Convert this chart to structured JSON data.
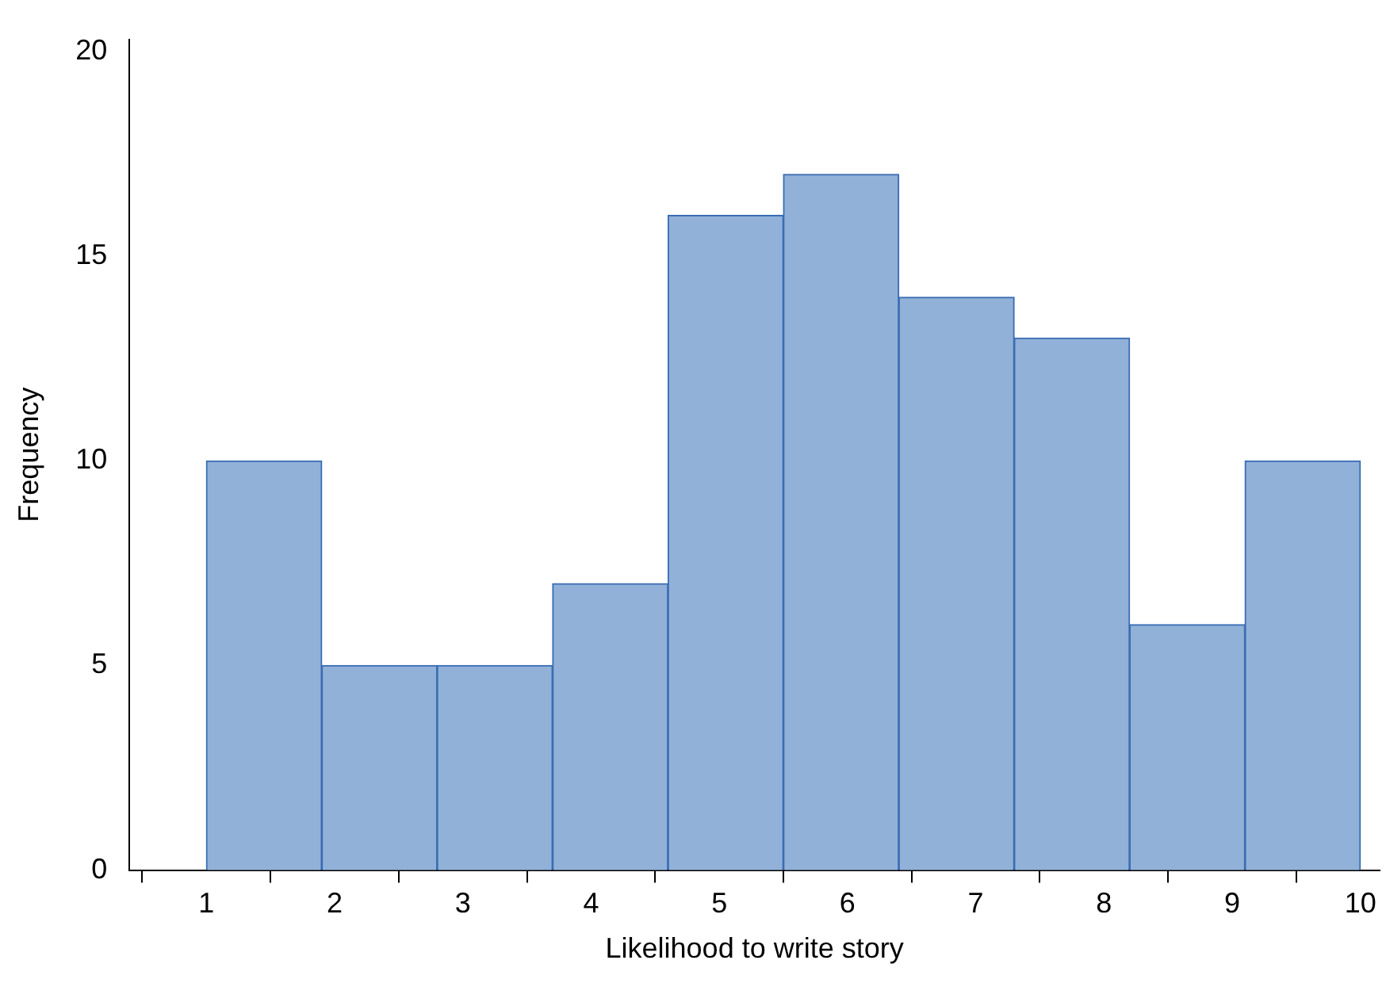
{
  "chart_data": {
    "type": "histogram",
    "xlabel": "Likelihood to write story",
    "ylabel": "Frequency",
    "bins": [
      1,
      1.9,
      2.8,
      3.7,
      4.6,
      5.5,
      6.4,
      7.3,
      8.2,
      9.1,
      10
    ],
    "values": [
      10,
      5,
      5,
      7,
      16,
      17,
      14,
      13,
      6,
      10
    ],
    "color": "#92b1d8",
    "xlim": [
      0.4,
      10.15
    ],
    "xticks": [
      1,
      2,
      3,
      4,
      5,
      6,
      7,
      8,
      9,
      10
    ],
    "ylim": [
      0,
      20.3
    ],
    "yticks": [
      0,
      5,
      10,
      15,
      20
    ],
    "grid": false,
    "legend": false
  }
}
